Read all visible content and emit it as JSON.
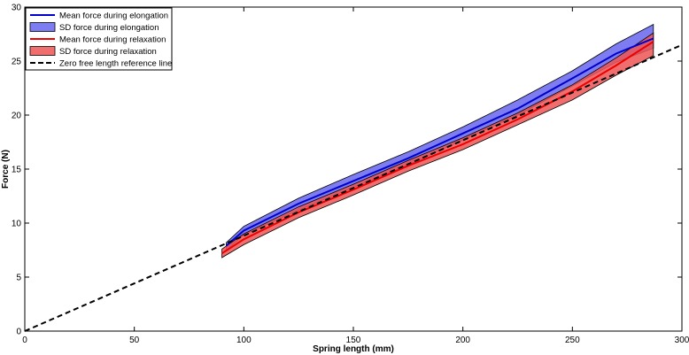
{
  "chart_data": {
    "type": "line",
    "xlabel": "Spring length (mm)",
    "ylabel": "Force (N)",
    "xlim": [
      0,
      300
    ],
    "ylim": [
      0,
      30
    ],
    "xticks": [
      0,
      50,
      100,
      150,
      200,
      250,
      300
    ],
    "yticks": [
      0,
      5,
      10,
      15,
      20,
      25,
      30
    ],
    "grid": false,
    "legend_position": "top-left",
    "series": [
      {
        "name": "Mean force during elongation",
        "kind": "line",
        "color": "#0000cc",
        "x": [
          92,
          100,
          125,
          150,
          175,
          200,
          225,
          250,
          270,
          287
        ],
        "y": [
          7.9,
          9.3,
          11.8,
          13.9,
          16.0,
          18.3,
          20.6,
          23.4,
          25.7,
          27.1
        ]
      },
      {
        "name": "SD force during elongation",
        "kind": "band",
        "color": "#6666ee",
        "x": [
          92,
          100,
          125,
          150,
          175,
          200,
          225,
          250,
          270,
          287
        ],
        "lower": [
          7.5,
          8.9,
          11.2,
          13.3,
          15.4,
          17.7,
          20.0,
          22.7,
          24.9,
          26.2
        ],
        "upper": [
          8.2,
          9.7,
          12.3,
          14.5,
          16.6,
          18.9,
          21.4,
          24.1,
          26.6,
          28.4
        ]
      },
      {
        "name": "Mean force during relaxation",
        "kind": "line",
        "color": "#ee0000",
        "x": [
          90,
          100,
          125,
          150,
          175,
          200,
          225,
          250,
          270,
          287
        ],
        "y": [
          7.2,
          8.5,
          11.0,
          13.1,
          15.3,
          17.3,
          19.6,
          22.2,
          24.6,
          26.8
        ]
      },
      {
        "name": "SD force during relaxation",
        "kind": "band",
        "color": "#ee5555",
        "x": [
          90,
          100,
          125,
          150,
          175,
          200,
          225,
          250,
          270,
          287
        ],
        "lower": [
          6.8,
          8.0,
          10.5,
          12.6,
          14.8,
          16.8,
          19.1,
          21.4,
          23.7,
          25.5
        ],
        "upper": [
          7.6,
          9.0,
          11.5,
          13.6,
          15.8,
          17.9,
          20.2,
          22.8,
          25.3,
          27.6
        ]
      },
      {
        "name": "Zero free length reference line",
        "kind": "dashed",
        "color": "#000000",
        "x": [
          0,
          300
        ],
        "y": [
          0,
          26.5
        ]
      }
    ]
  }
}
